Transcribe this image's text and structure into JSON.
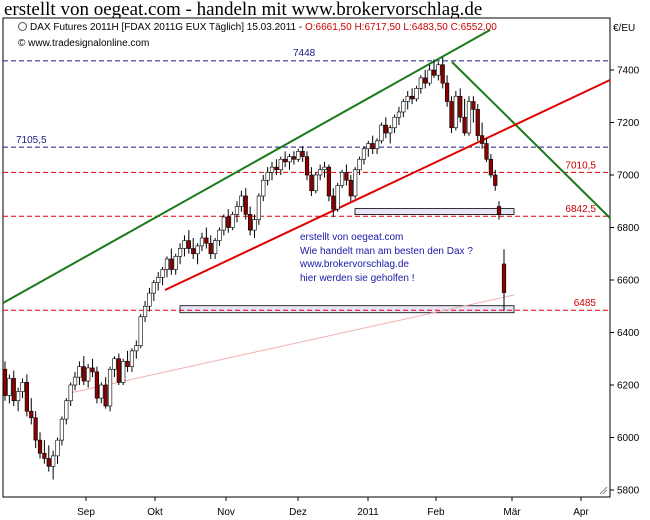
{
  "page_title": "erstellt von oegeat.com - handeln mit www.brokervorschlag.de",
  "info": {
    "instrument": "DAX Futures 2011H [FDAX 2011G EUX  Täglich] 15.03.2011 - ",
    "ohlc": "O:6661,50 H:6717,50 L:6483,50 C:6552,00",
    "credit": "© www.tradesignalonline.com",
    "unit": "€/EU"
  },
  "annotation": [
    "erstellt von oegeat.com",
    "Wie handelt man am besten den Dax ?",
    "www.brokervorschlag.de",
    "hier werden sie geholfen !"
  ],
  "colors": {
    "up_candle": "#ffffff",
    "down_candle": "#8b0000",
    "green_line": "#1a7a1a",
    "red_line": "#e00000",
    "blue_dash": "#1a1a80",
    "red_dash": "#e00000",
    "zone_fill": "#e6e6f8",
    "pink_line": "#f0b0b0",
    "label_blue": "#1a1a80",
    "label_red": "#cc0000"
  },
  "chart_data": {
    "type": "candlestick",
    "y_ticks": [
      "5800",
      "6000",
      "6200",
      "6400",
      "6600",
      "6800",
      "7000",
      "7200",
      "7400"
    ],
    "x_ticks": [
      "Sep",
      "Okt",
      "Nov",
      "Dez",
      "2011",
      "Feb",
      "Mär",
      "Apr"
    ],
    "ylim": [
      5700,
      7530
    ],
    "levels": [
      {
        "label": "7448",
        "value": 7435,
        "style": "blue-dash",
        "label_pos": "top-center"
      },
      {
        "label": "7105,5",
        "value": 7106,
        "style": "blue-dash",
        "label_pos": "left"
      },
      {
        "label": "7010,5",
        "value": 7010,
        "style": "red-dash",
        "label_pos": "right"
      },
      {
        "label": "6842,5",
        "value": 6843,
        "style": "red-dash",
        "label_pos": "right"
      },
      {
        "label": "6485",
        "value": 6485,
        "style": "red-dash",
        "label_pos": "right"
      }
    ],
    "candles": [
      [
        6260,
        6290,
        6140,
        6160
      ],
      [
        6160,
        6240,
        6130,
        6225
      ],
      [
        6225,
        6255,
        6120,
        6140
      ],
      [
        6140,
        6190,
        6100,
        6175
      ],
      [
        6175,
        6225,
        6150,
        6210
      ],
      [
        6210,
        6240,
        6080,
        6100
      ],
      [
        6100,
        6150,
        6050,
        6075
      ],
      [
        6075,
        6100,
        5960,
        5990
      ],
      [
        5990,
        6020,
        5920,
        5940
      ],
      [
        5940,
        5990,
        5900,
        5920
      ],
      [
        5920,
        5970,
        5870,
        5890
      ],
      [
        5890,
        5950,
        5840,
        5930
      ],
      [
        5930,
        6000,
        5900,
        5990
      ],
      [
        5990,
        6080,
        5970,
        6070
      ],
      [
        6070,
        6150,
        6050,
        6140
      ],
      [
        6140,
        6210,
        6120,
        6200
      ],
      [
        6200,
        6250,
        6180,
        6230
      ],
      [
        6230,
        6290,
        6200,
        6270
      ],
      [
        6270,
        6310,
        6200,
        6215
      ],
      [
        6215,
        6280,
        6190,
        6265
      ],
      [
        6265,
        6300,
        6230,
        6250
      ],
      [
        6250,
        6270,
        6130,
        6150
      ],
      [
        6150,
        6210,
        6130,
        6200
      ],
      [
        6200,
        6230,
        6110,
        6120
      ],
      [
        6120,
        6270,
        6100,
        6260
      ],
      [
        6260,
        6310,
        6230,
        6300
      ],
      [
        6300,
        6320,
        6200,
        6210
      ],
      [
        6210,
        6300,
        6200,
        6290
      ],
      [
        6290,
        6330,
        6250,
        6270
      ],
      [
        6270,
        6340,
        6250,
        6330
      ],
      [
        6330,
        6370,
        6300,
        6350
      ],
      [
        6350,
        6470,
        6340,
        6460
      ],
      [
        6460,
        6520,
        6440,
        6500
      ],
      [
        6500,
        6570,
        6480,
        6550
      ],
      [
        6550,
        6600,
        6520,
        6590
      ],
      [
        6590,
        6630,
        6560,
        6610
      ],
      [
        6610,
        6650,
        6580,
        6640
      ],
      [
        6640,
        6690,
        6610,
        6680
      ],
      [
        6680,
        6720,
        6620,
        6640
      ],
      [
        6640,
        6700,
        6620,
        6690
      ],
      [
        6690,
        6740,
        6660,
        6720
      ],
      [
        6720,
        6770,
        6690,
        6750
      ],
      [
        6750,
        6790,
        6700,
        6720
      ],
      [
        6720,
        6760,
        6680,
        6700
      ],
      [
        6700,
        6740,
        6660,
        6730
      ],
      [
        6730,
        6780,
        6710,
        6760
      ],
      [
        6760,
        6800,
        6720,
        6740
      ],
      [
        6740,
        6770,
        6680,
        6700
      ],
      [
        6700,
        6760,
        6680,
        6750
      ],
      [
        6750,
        6800,
        6730,
        6790
      ],
      [
        6790,
        6850,
        6770,
        6840
      ],
      [
        6840,
        6870,
        6780,
        6800
      ],
      [
        6800,
        6860,
        6790,
        6850
      ],
      [
        6850,
        6900,
        6820,
        6880
      ],
      [
        6880,
        6940,
        6860,
        6920
      ],
      [
        6920,
        6950,
        6830,
        6850
      ],
      [
        6850,
        6880,
        6770,
        6790
      ],
      [
        6790,
        6850,
        6760,
        6830
      ],
      [
        6830,
        6930,
        6810,
        6920
      ],
      [
        6920,
        7000,
        6900,
        6980
      ],
      [
        6980,
        7030,
        6960,
        7010
      ],
      [
        7010,
        7050,
        6980,
        7030
      ],
      [
        7030,
        7060,
        7000,
        7020
      ],
      [
        7020,
        7070,
        7000,
        7060
      ],
      [
        7060,
        7090,
        7030,
        7050
      ],
      [
        7050,
        7080,
        7020,
        7070
      ],
      [
        7070,
        7090,
        7040,
        7060
      ],
      [
        7060,
        7100,
        7050,
        7090
      ],
      [
        7090,
        7110,
        7050,
        7070
      ],
      [
        7070,
        7090,
        6980,
        7000
      ],
      [
        7000,
        7030,
        6920,
        6940
      ],
      [
        6940,
        7010,
        6930,
        7000
      ],
      [
        7000,
        7040,
        6980,
        7020
      ],
      [
        7020,
        7050,
        6990,
        7030
      ],
      [
        7030,
        7040,
        6900,
        6920
      ],
      [
        6920,
        6950,
        6840,
        6870
      ],
      [
        6870,
        6970,
        6860,
        6960
      ],
      [
        6960,
        7020,
        6950,
        7010
      ],
      [
        7010,
        7040,
        6960,
        6980
      ],
      [
        6980,
        7000,
        6900,
        6920
      ],
      [
        6920,
        7030,
        6910,
        7020
      ],
      [
        7020,
        7070,
        7000,
        7060
      ],
      [
        7060,
        7110,
        7040,
        7100
      ],
      [
        7100,
        7130,
        7070,
        7120
      ],
      [
        7120,
        7150,
        7080,
        7100
      ],
      [
        7100,
        7140,
        7080,
        7130
      ],
      [
        7130,
        7200,
        7120,
        7190
      ],
      [
        7190,
        7220,
        7140,
        7160
      ],
      [
        7160,
        7190,
        7120,
        7180
      ],
      [
        7180,
        7230,
        7160,
        7220
      ],
      [
        7220,
        7260,
        7190,
        7240
      ],
      [
        7240,
        7290,
        7220,
        7280
      ],
      [
        7280,
        7320,
        7250,
        7300
      ],
      [
        7300,
        7330,
        7270,
        7290
      ],
      [
        7290,
        7340,
        7280,
        7330
      ],
      [
        7330,
        7380,
        7310,
        7370
      ],
      [
        7370,
        7400,
        7330,
        7350
      ],
      [
        7350,
        7420,
        7340,
        7400
      ],
      [
        7400,
        7440,
        7370,
        7380
      ],
      [
        7380,
        7430,
        7360,
        7420
      ],
      [
        7420,
        7448,
        7330,
        7350
      ],
      [
        7350,
        7380,
        7260,
        7280
      ],
      [
        7280,
        7300,
        7160,
        7180
      ],
      [
        7180,
        7320,
        7170,
        7300
      ],
      [
        7300,
        7330,
        7200,
        7220
      ],
      [
        7220,
        7290,
        7150,
        7160
      ],
      [
        7160,
        7300,
        7150,
        7280
      ],
      [
        7280,
        7300,
        7200,
        7250
      ],
      [
        7250,
        7270,
        7130,
        7150
      ],
      [
        7150,
        7200,
        7100,
        7120
      ],
      [
        7120,
        7140,
        7050,
        7060
      ],
      [
        7060,
        7080,
        6990,
        7000
      ],
      [
        7000,
        7020,
        6940,
        6960
      ],
      [
        6880,
        6900,
        6830,
        6850
      ],
      [
        6661,
        6717,
        6483,
        6552
      ]
    ]
  }
}
